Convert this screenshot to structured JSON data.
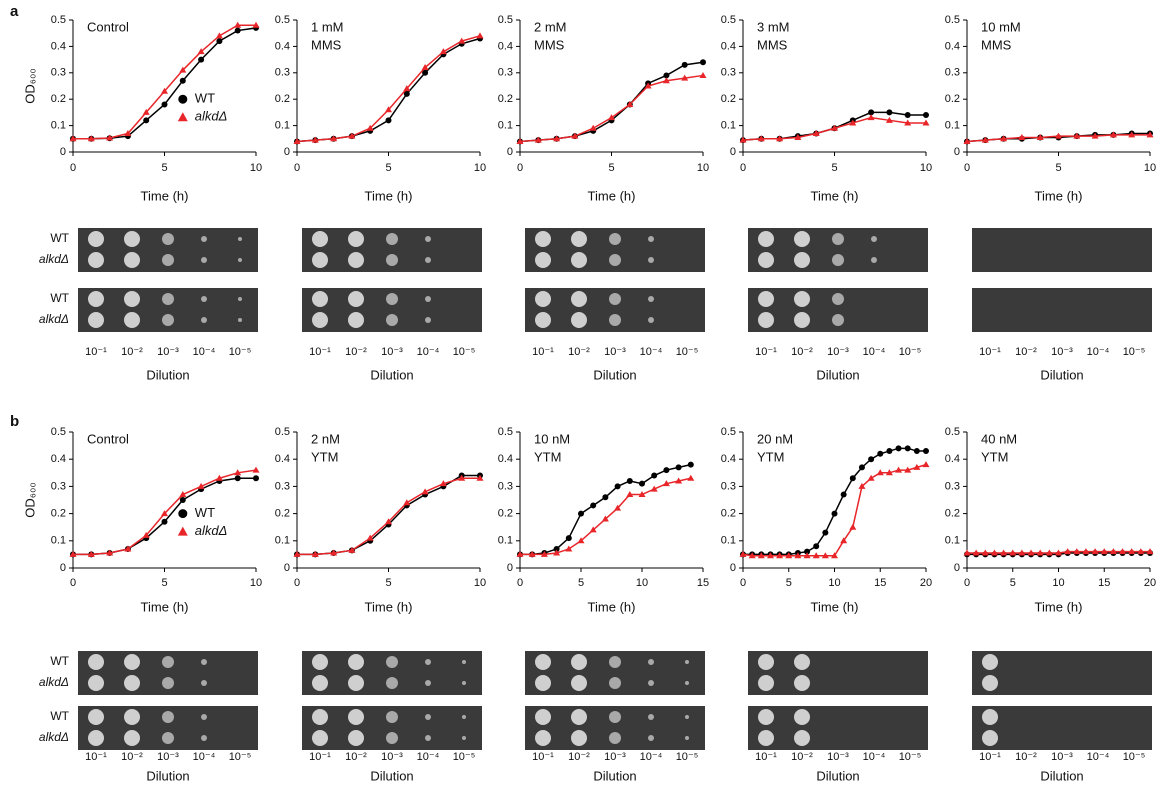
{
  "panel_labels": [
    "a",
    "b"
  ],
  "plates": {
    "row_labels": [
      "WT",
      "alkdΔ"
    ],
    "dilutions": [
      "10⁻¹",
      "10⁻²",
      "10⁻³",
      "10⁻⁴",
      "10⁻⁵"
    ],
    "xlabel": "Dilution"
  },
  "chart_data": [
    {
      "type": "line",
      "annotation": [
        "Control"
      ],
      "ylabel": "OD₆₀₀",
      "legend": true,
      "xlabel": "Time (h)",
      "x": [
        0,
        1,
        2,
        3,
        4,
        5,
        6,
        7,
        8,
        9,
        10
      ],
      "xlim": [
        0,
        10
      ],
      "xticks": [
        0,
        5,
        10
      ],
      "ylim": [
        0,
        0.5
      ],
      "yticks": [
        0,
        0.1,
        0.2,
        0.3,
        0.4,
        0.5
      ],
      "series": [
        {
          "name": "WT",
          "color": "#000000",
          "marker": "circle",
          "values": [
            0.05,
            0.05,
            0.052,
            0.06,
            0.12,
            0.18,
            0.27,
            0.35,
            0.42,
            0.46,
            0.47
          ]
        },
        {
          "name": "alkdΔ",
          "color": "#e8262a",
          "marker": "triangle",
          "values": [
            0.05,
            0.05,
            0.053,
            0.07,
            0.15,
            0.23,
            0.31,
            0.38,
            0.44,
            0.48,
            0.48
          ]
        }
      ]
    },
    {
      "type": "line",
      "annotation": [
        "1 mM",
        "MMS"
      ],
      "xlabel": "Time (h)",
      "x": [
        0,
        1,
        2,
        3,
        4,
        5,
        6,
        7,
        8,
        9,
        10
      ],
      "xlim": [
        0,
        10
      ],
      "xticks": [
        0,
        5,
        10
      ],
      "ylim": [
        0,
        0.5
      ],
      "yticks": [
        0,
        0.1,
        0.2,
        0.3,
        0.4,
        0.5
      ],
      "series": [
        {
          "name": "WT",
          "color": "#000000",
          "marker": "circle",
          "values": [
            0.04,
            0.045,
            0.05,
            0.06,
            0.08,
            0.12,
            0.22,
            0.3,
            0.37,
            0.41,
            0.43
          ]
        },
        {
          "name": "alkdΔ",
          "color": "#e8262a",
          "marker": "triangle",
          "values": [
            0.04,
            0.045,
            0.05,
            0.06,
            0.09,
            0.16,
            0.24,
            0.32,
            0.38,
            0.42,
            0.44
          ]
        }
      ]
    },
    {
      "type": "line",
      "annotation": [
        "2 mM",
        "MMS"
      ],
      "xlabel": "Time (h)",
      "x": [
        0,
        1,
        2,
        3,
        4,
        5,
        6,
        7,
        8,
        9,
        10
      ],
      "xlim": [
        0,
        10
      ],
      "xticks": [
        0,
        5,
        10
      ],
      "ylim": [
        0,
        0.5
      ],
      "yticks": [
        0,
        0.1,
        0.2,
        0.3,
        0.4,
        0.5
      ],
      "series": [
        {
          "name": "WT",
          "color": "#000000",
          "marker": "circle",
          "values": [
            0.04,
            0.045,
            0.05,
            0.06,
            0.08,
            0.12,
            0.18,
            0.26,
            0.29,
            0.33,
            0.34
          ]
        },
        {
          "name": "alkdΔ",
          "color": "#e8262a",
          "marker": "triangle",
          "values": [
            0.04,
            0.045,
            0.05,
            0.06,
            0.09,
            0.13,
            0.18,
            0.25,
            0.27,
            0.28,
            0.29
          ]
        }
      ]
    },
    {
      "type": "line",
      "annotation": [
        "3 mM",
        "MMS"
      ],
      "xlabel": "Time (h)",
      "x": [
        0,
        1,
        2,
        3,
        4,
        5,
        6,
        7,
        8,
        9,
        10
      ],
      "xlim": [
        0,
        10
      ],
      "xticks": [
        0,
        5,
        10
      ],
      "ylim": [
        0,
        0.5
      ],
      "yticks": [
        0,
        0.1,
        0.2,
        0.3,
        0.4,
        0.5
      ],
      "series": [
        {
          "name": "WT",
          "color": "#000000",
          "marker": "circle",
          "values": [
            0.045,
            0.05,
            0.05,
            0.06,
            0.07,
            0.09,
            0.12,
            0.15,
            0.15,
            0.14,
            0.14
          ]
        },
        {
          "name": "alkdΔ",
          "color": "#e8262a",
          "marker": "triangle",
          "values": [
            0.045,
            0.05,
            0.05,
            0.055,
            0.07,
            0.09,
            0.11,
            0.13,
            0.12,
            0.11,
            0.11
          ]
        }
      ]
    },
    {
      "type": "line",
      "annotation": [
        "10 mM",
        "MMS"
      ],
      "xlabel": "Time (h)",
      "x": [
        0,
        1,
        2,
        3,
        4,
        5,
        6,
        7,
        8,
        9,
        10
      ],
      "xlim": [
        0,
        10
      ],
      "xticks": [
        0,
        5,
        10
      ],
      "ylim": [
        0,
        0.5
      ],
      "yticks": [
        0,
        0.1,
        0.2,
        0.3,
        0.4,
        0.5
      ],
      "series": [
        {
          "name": "WT",
          "color": "#000000",
          "marker": "circle",
          "values": [
            0.04,
            0.045,
            0.05,
            0.05,
            0.055,
            0.055,
            0.06,
            0.065,
            0.065,
            0.07,
            0.07
          ]
        },
        {
          "name": "alkdΔ",
          "color": "#e8262a",
          "marker": "triangle",
          "values": [
            0.04,
            0.045,
            0.05,
            0.055,
            0.055,
            0.06,
            0.06,
            0.06,
            0.065,
            0.065,
            0.065
          ]
        }
      ]
    },
    {
      "type": "line",
      "annotation": [
        "Control"
      ],
      "ylabel": "OD₆₀₀",
      "legend": true,
      "xlabel": "Time (h)",
      "x": [
        0,
        1,
        2,
        3,
        4,
        5,
        6,
        7,
        8,
        9,
        10
      ],
      "xlim": [
        0,
        10
      ],
      "xticks": [
        0,
        5,
        10
      ],
      "ylim": [
        0,
        0.5
      ],
      "yticks": [
        0,
        0.1,
        0.2,
        0.3,
        0.4,
        0.5
      ],
      "series": [
        {
          "name": "WT",
          "color": "#000000",
          "marker": "circle",
          "values": [
            0.05,
            0.05,
            0.055,
            0.07,
            0.11,
            0.17,
            0.25,
            0.29,
            0.32,
            0.33,
            0.33
          ]
        },
        {
          "name": "alkdΔ",
          "color": "#e8262a",
          "marker": "triangle",
          "values": [
            0.05,
            0.05,
            0.055,
            0.07,
            0.12,
            0.2,
            0.27,
            0.3,
            0.33,
            0.35,
            0.36
          ]
        }
      ]
    },
    {
      "type": "line",
      "annotation": [
        "2 nM",
        "YTM"
      ],
      "xlabel": "Time (h)",
      "x": [
        0,
        1,
        2,
        3,
        4,
        5,
        6,
        7,
        8,
        9,
        10
      ],
      "xlim": [
        0,
        10
      ],
      "xticks": [
        0,
        5,
        10
      ],
      "ylim": [
        0,
        0.5
      ],
      "yticks": [
        0,
        0.1,
        0.2,
        0.3,
        0.4,
        0.5
      ],
      "series": [
        {
          "name": "WT",
          "color": "#000000",
          "marker": "circle",
          "values": [
            0.05,
            0.05,
            0.055,
            0.065,
            0.1,
            0.16,
            0.23,
            0.27,
            0.3,
            0.34,
            0.34
          ]
        },
        {
          "name": "alkdΔ",
          "color": "#e8262a",
          "marker": "triangle",
          "values": [
            0.05,
            0.05,
            0.055,
            0.065,
            0.11,
            0.17,
            0.24,
            0.28,
            0.31,
            0.33,
            0.33
          ]
        }
      ]
    },
    {
      "type": "line",
      "annotation": [
        "10 nM",
        "YTM"
      ],
      "xlabel": "Time (h)",
      "x": [
        0,
        1,
        2,
        3,
        4,
        5,
        6,
        7,
        8,
        9,
        10,
        11,
        12,
        13,
        14
      ],
      "xlim": [
        0,
        15
      ],
      "xticks": [
        0,
        5,
        10,
        15
      ],
      "ylim": [
        0,
        0.5
      ],
      "yticks": [
        0,
        0.1,
        0.2,
        0.3,
        0.4,
        0.5
      ],
      "series": [
        {
          "name": "WT",
          "color": "#000000",
          "marker": "circle",
          "values": [
            0.05,
            0.05,
            0.055,
            0.07,
            0.11,
            0.2,
            0.23,
            0.26,
            0.3,
            0.32,
            0.31,
            0.34,
            0.36,
            0.37,
            0.38
          ]
        },
        {
          "name": "alkdΔ",
          "color": "#e8262a",
          "marker": "triangle",
          "values": [
            0.05,
            0.05,
            0.05,
            0.055,
            0.07,
            0.1,
            0.14,
            0.18,
            0.22,
            0.27,
            0.27,
            0.29,
            0.31,
            0.32,
            0.33
          ]
        }
      ]
    },
    {
      "type": "line",
      "annotation": [
        "20 nM",
        "YTM"
      ],
      "xlabel": "Time (h)",
      "x": [
        0,
        1,
        2,
        3,
        4,
        5,
        6,
        7,
        8,
        9,
        10,
        11,
        12,
        13,
        14,
        15,
        16,
        17,
        18,
        19,
        20
      ],
      "xlim": [
        0,
        20
      ],
      "xticks": [
        0,
        5,
        10,
        15,
        20
      ],
      "ylim": [
        0,
        0.5
      ],
      "yticks": [
        0,
        0.1,
        0.2,
        0.3,
        0.4,
        0.5
      ],
      "series": [
        {
          "name": "WT",
          "color": "#000000",
          "marker": "circle",
          "values": [
            0.05,
            0.05,
            0.05,
            0.05,
            0.05,
            0.05,
            0.055,
            0.06,
            0.08,
            0.13,
            0.2,
            0.27,
            0.33,
            0.37,
            0.4,
            0.42,
            0.43,
            0.44,
            0.44,
            0.43,
            0.43
          ]
        },
        {
          "name": "alkdΔ",
          "color": "#e8262a",
          "marker": "triangle",
          "values": [
            0.05,
            0.045,
            0.045,
            0.045,
            0.045,
            0.045,
            0.045,
            0.045,
            0.045,
            0.045,
            0.045,
            0.1,
            0.15,
            0.3,
            0.33,
            0.35,
            0.35,
            0.36,
            0.36,
            0.37,
            0.38
          ]
        }
      ]
    },
    {
      "type": "line",
      "annotation": [
        "40 nM",
        "YTM"
      ],
      "xlabel": "Time (h)",
      "x": [
        0,
        1,
        2,
        3,
        4,
        5,
        6,
        7,
        8,
        9,
        10,
        11,
        12,
        13,
        14,
        15,
        16,
        17,
        18,
        19,
        20
      ],
      "xlim": [
        0,
        20
      ],
      "xticks": [
        0,
        5,
        10,
        15,
        20
      ],
      "ylim": [
        0,
        0.5
      ],
      "yticks": [
        0,
        0.1,
        0.2,
        0.3,
        0.4,
        0.5
      ],
      "series": [
        {
          "name": "WT",
          "color": "#000000",
          "marker": "circle",
          "values": [
            0.05,
            0.05,
            0.05,
            0.05,
            0.05,
            0.05,
            0.05,
            0.05,
            0.05,
            0.05,
            0.05,
            0.055,
            0.055,
            0.055,
            0.055,
            0.055,
            0.055,
            0.055,
            0.055,
            0.055,
            0.055
          ]
        },
        {
          "name": "alkdΔ",
          "color": "#e8262a",
          "marker": "triangle",
          "values": [
            0.055,
            0.055,
            0.055,
            0.055,
            0.055,
            0.055,
            0.055,
            0.055,
            0.055,
            0.055,
            0.055,
            0.06,
            0.06,
            0.06,
            0.06,
            0.06,
            0.06,
            0.06,
            0.06,
            0.06,
            0.06
          ]
        }
      ]
    }
  ]
}
